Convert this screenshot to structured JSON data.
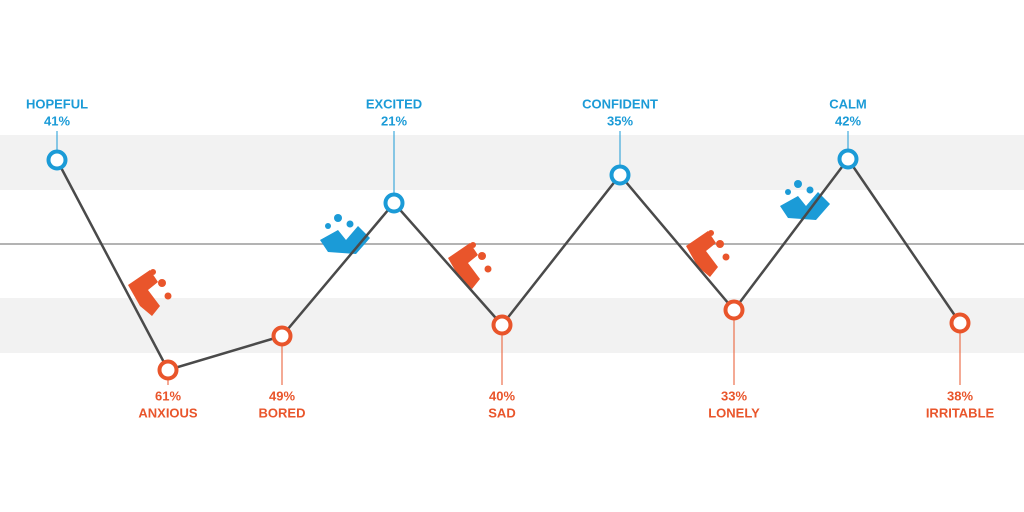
{
  "nodes": [
    {
      "label": "HOPEFUL",
      "value": "41%",
      "kind": "positive"
    },
    {
      "label": "ANXIOUS",
      "value": "61%",
      "kind": "negative"
    },
    {
      "label": "BORED",
      "value": "49%",
      "kind": "negative"
    },
    {
      "label": "EXCITED",
      "value": "21%",
      "kind": "positive"
    },
    {
      "label": "SAD",
      "value": "40%",
      "kind": "negative"
    },
    {
      "label": "CONFIDENT",
      "value": "35%",
      "kind": "positive"
    },
    {
      "label": "LONELY",
      "value": "33%",
      "kind": "negative"
    },
    {
      "label": "CALM",
      "value": "42%",
      "kind": "positive"
    },
    {
      "label": "IRRITABLE",
      "value": "38%",
      "kind": "negative"
    }
  ],
  "colors": {
    "positive": "#1b9bd7",
    "negative": "#e9552b"
  }
}
